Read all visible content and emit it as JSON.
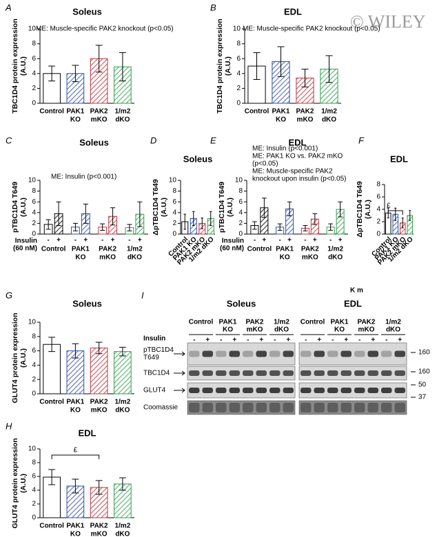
{
  "watermark": "© WILEY",
  "chart_data": [
    {
      "type": "bar",
      "panel": "A",
      "title": "Soleus",
      "ylabel": [
        "TBC1D4 protein expression",
        "(A.U.)"
      ],
      "annotations": [
        "ME: Muscle-specific PAK2 knockout (p<0.05)"
      ],
      "categories": [
        [
          "Control"
        ],
        [
          "PAK1",
          "KO"
        ],
        [
          "PAK2",
          "mKO"
        ],
        [
          "1/m2",
          "dKO"
        ]
      ],
      "colors": [
        "#000000",
        "#2e4fa3",
        "#c2303c",
        "#2e9e4a"
      ],
      "values": [
        4.0,
        4.0,
        6.0,
        4.9
      ],
      "errors": [
        1.0,
        1.1,
        1.8,
        1.9
      ],
      "ylim": [
        0,
        10
      ],
      "yticks": [
        0,
        2,
        4,
        6,
        8,
        10
      ]
    },
    {
      "type": "bar",
      "panel": "B",
      "title": "EDL",
      "ylabel": [
        "TBC1D4 protein expression",
        "(A.U.)"
      ],
      "annotations": [
        "ME: Muscle-specific PAK2 knockout (p<0.05)"
      ],
      "categories": [
        [
          "Control"
        ],
        [
          "PAK1",
          "KO"
        ],
        [
          "PAK2",
          "mKO"
        ],
        [
          "1/m2",
          "dKO"
        ]
      ],
      "colors": [
        "#000000",
        "#2e4fa3",
        "#c2303c",
        "#2e9e4a"
      ],
      "values": [
        5.0,
        5.6,
        3.4,
        4.6
      ],
      "errors": [
        1.8,
        2.0,
        1.2,
        1.8
      ],
      "ylim": [
        0,
        10
      ],
      "yticks": [
        0,
        2,
        4,
        6,
        8,
        10
      ]
    },
    {
      "type": "grouped",
      "panel": "C",
      "title": "Soleus",
      "ylabel": [
        "pTBC1D4 T649",
        "(A.U.)"
      ],
      "annotations": [
        "ME: Insulin (p<0.001)"
      ],
      "xlabel": [
        "Insulin",
        "(60 nM)"
      ],
      "categories": [
        [
          "Control"
        ],
        [
          "PAK1",
          "KO"
        ],
        [
          "PAK2",
          "mKO"
        ],
        [
          "1/m2",
          "dKO"
        ]
      ],
      "colors": [
        "#000000",
        "#2e4fa3",
        "#c2303c",
        "#2e9e4a"
      ],
      "series": [
        {
          "name": "-",
          "values": [
            1.8,
            1.3,
            1.3,
            1.2
          ],
          "errors": [
            0.9,
            0.7,
            0.6,
            0.6
          ]
        },
        {
          "name": "+",
          "values": [
            3.8,
            3.8,
            3.3,
            3.7
          ],
          "errors": [
            2.2,
            1.8,
            1.6,
            2.3
          ]
        }
      ],
      "ylim": [
        0,
        10
      ],
      "yticks": [
        0,
        2,
        4,
        6,
        8,
        10
      ]
    },
    {
      "type": "bar",
      "panel": "D",
      "title": "Soleus",
      "ylabel": [
        "ΔpTBC1D4 T649",
        "(A.U.)"
      ],
      "annotations": [],
      "categories": [
        [
          "Control"
        ],
        [
          "PAK1 KO"
        ],
        [
          "PAK2 mKO"
        ],
        [
          "1/m2 dKO"
        ]
      ],
      "colors": [
        "#000000",
        "#2e4fa3",
        "#c2303c",
        "#2e9e4a"
      ],
      "values": [
        2.3,
        2.9,
        2.0,
        2.9
      ],
      "errors": [
        1.4,
        1.3,
        1.0,
        1.3
      ],
      "ylim": [
        0,
        10
      ],
      "yticks": [
        0,
        2,
        4,
        6,
        8,
        10
      ]
    },
    {
      "type": "grouped",
      "panel": "E",
      "title": "EDL",
      "ylabel": [
        "pTBC1D4 T649",
        "(A.U.)"
      ],
      "annotations": [
        "ME: Insulin (p<0.001)",
        "ME: PAK1 KO vs. PAK2 mKO",
        "(p<0.05)",
        "ME: Muscle-specific PAK2",
        "knockout upon insulin (p<0.05)"
      ],
      "xlabel": [
        "Insulin",
        "(60 nM)"
      ],
      "categories": [
        [
          "Control"
        ],
        [
          "PAK1",
          "KO"
        ],
        [
          "PAK2",
          "mKO"
        ],
        [
          "1/m2",
          "dKO"
        ]
      ],
      "colors": [
        "#000000",
        "#2e4fa3",
        "#c2303c",
        "#2e9e4a"
      ],
      "series": [
        {
          "name": "-",
          "values": [
            1.6,
            1.3,
            1.1,
            1.3
          ],
          "errors": [
            0.7,
            0.6,
            0.5,
            0.6
          ]
        },
        {
          "name": "+",
          "values": [
            4.9,
            4.7,
            2.8,
            4.6
          ],
          "errors": [
            1.8,
            1.3,
            1.0,
            1.4
          ]
        }
      ],
      "ylim": [
        0,
        10
      ],
      "yticks": [
        0,
        2,
        4,
        6,
        8,
        10
      ]
    },
    {
      "type": "bar",
      "panel": "F",
      "title": "EDL",
      "ylabel": [
        "ΔpTBC1D4 T649",
        "(A.U.)"
      ],
      "annotations": [
        "£"
      ],
      "categories": [
        [
          "Control"
        ],
        [
          "PAK1 KO"
        ],
        [
          "PAK2 mKO"
        ],
        [
          "1/m2 dKO"
        ]
      ],
      "colors": [
        "#000000",
        "#2e4fa3",
        "#c2303c",
        "#2e9e4a"
      ],
      "values": [
        3.4,
        3.2,
        1.8,
        3.0
      ],
      "errors": [
        0.8,
        1.0,
        0.8,
        0.8
      ],
      "ylim": [
        0,
        8
      ],
      "yticks": [
        0,
        2,
        4,
        6,
        8
      ]
    },
    {
      "type": "bar",
      "panel": "G",
      "title": "Soleus",
      "ylabel": [
        "GLUT4 protein expression",
        "(A.U.)"
      ],
      "annotations": [],
      "categories": [
        [
          "Control"
        ],
        [
          "PAK1",
          "KO"
        ],
        [
          "PAK2",
          "mKO"
        ],
        [
          "1/m2",
          "dKO"
        ]
      ],
      "colors": [
        "#000000",
        "#2e4fa3",
        "#c2303c",
        "#2e9e4a"
      ],
      "values": [
        6.9,
        6.0,
        6.4,
        5.9
      ],
      "errors": [
        1.0,
        1.0,
        0.8,
        0.6
      ],
      "ylim": [
        0,
        10
      ],
      "yticks": [
        0,
        2,
        4,
        6,
        8,
        10
      ]
    },
    {
      "type": "bar",
      "panel": "H",
      "title": "EDL",
      "ylabel": [
        "GLUT4 protein expression",
        "(A.U.)"
      ],
      "annotations": [
        "£"
      ],
      "categories": [
        [
          "Control"
        ],
        [
          "PAK1",
          "KO"
        ],
        [
          "PAK2",
          "mKO"
        ],
        [
          "1/m2",
          "dKO"
        ]
      ],
      "colors": [
        "#000000",
        "#2e4fa3",
        "#c2303c",
        "#2e9e4a"
      ],
      "values": [
        5.9,
        4.6,
        4.4,
        4.9
      ],
      "errors": [
        1.1,
        1.0,
        1.0,
        0.9
      ],
      "ylim": [
        0,
        10
      ],
      "yticks": [
        0,
        2,
        4,
        6,
        8,
        10
      ]
    }
  ],
  "blot": {
    "panel": "I",
    "tissues": [
      "Soleus",
      "EDL"
    ],
    "groups": [
      [
        "Control"
      ],
      [
        "PAK1",
        "KO"
      ],
      [
        "PAK2",
        "mKO"
      ],
      [
        "1/m2",
        "dKO"
      ]
    ],
    "insulin_label": "Insulin",
    "insulin_levels": [
      "-",
      "+"
    ],
    "rows": [
      [
        "pTBC1D4",
        "T649"
      ],
      [
        "TBC1D4"
      ],
      [
        "GLUT4"
      ],
      [
        "Coomassie"
      ]
    ],
    "markers": [
      "160",
      "160",
      "50",
      "37"
    ],
    "note": "K m"
  }
}
